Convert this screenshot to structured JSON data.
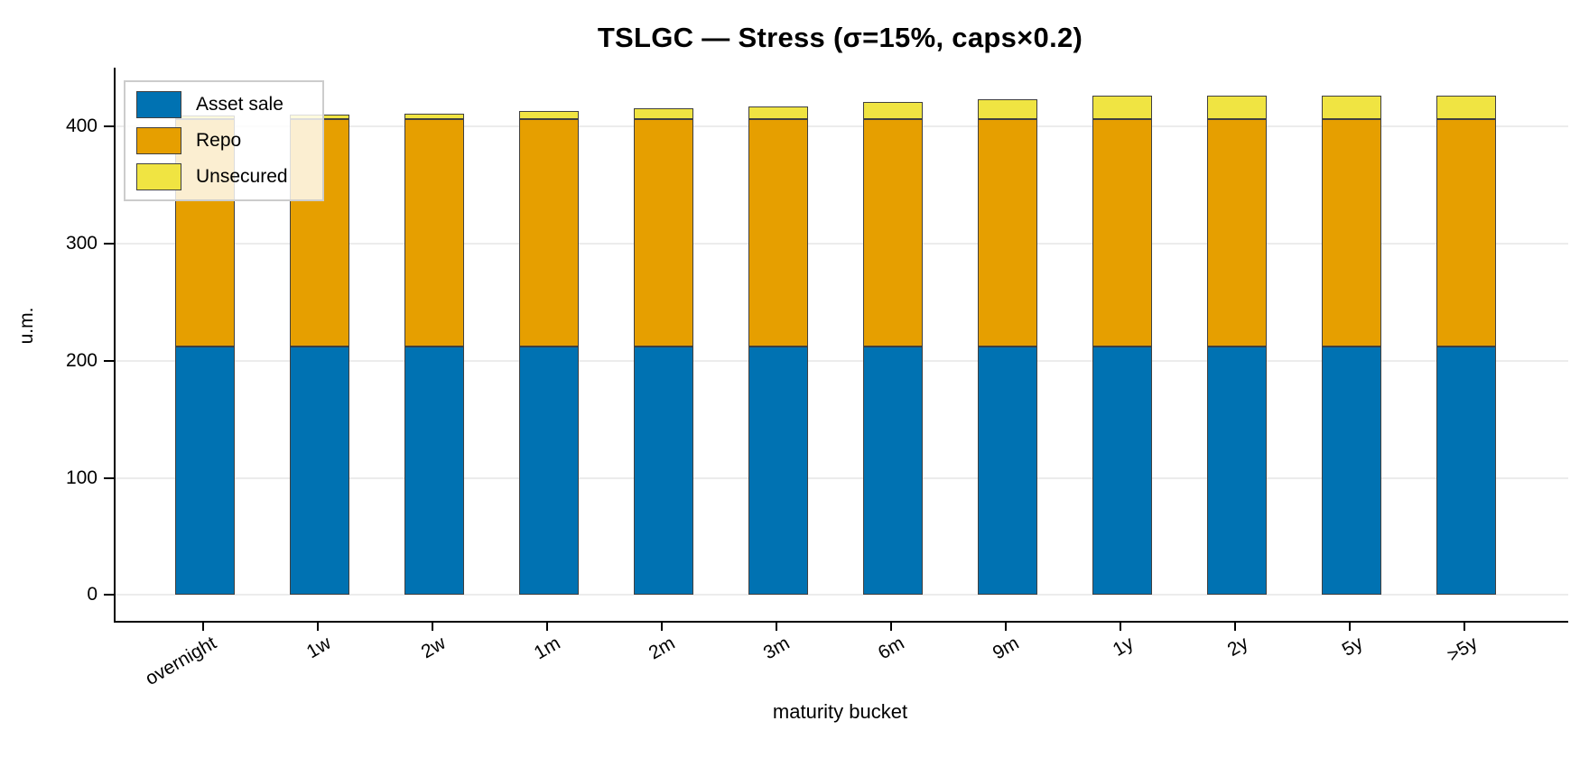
{
  "title": "TSLGC — Stress (σ=15%, caps×0.2)",
  "chart_data": {
    "type": "bar",
    "stacked": true,
    "title": "TSLGC — Stress (σ=15%, caps×0.2)",
    "xlabel": "maturity bucket",
    "ylabel": "u.m.",
    "categories": [
      "overnight",
      "1w",
      "2w",
      "1m",
      "2m",
      "3m",
      "6m",
      "9m",
      "1y",
      "2y",
      "5y",
      ">5y"
    ],
    "series": [
      {
        "name": "Asset sale",
        "color": "#0072B2",
        "values": [
          212,
          212,
          212,
          212,
          212,
          212,
          212,
          212,
          212,
          212,
          212,
          212
        ]
      },
      {
        "name": "Repo",
        "color": "#E69F00",
        "values": [
          194,
          194,
          194,
          194,
          194,
          194,
          194,
          194,
          194,
          194,
          194,
          194
        ]
      },
      {
        "name": "Unsecured",
        "color": "#F0E442",
        "values": [
          3,
          4,
          5,
          7,
          9,
          11,
          15,
          17,
          20,
          20,
          20,
          20
        ]
      }
    ],
    "stack_totals": [
      409,
      410,
      411,
      413,
      415,
      417,
      421,
      423,
      426,
      426,
      426,
      426
    ],
    "yticks": [
      0,
      100,
      200,
      300,
      400
    ],
    "ylim": [
      -22,
      450
    ],
    "grid": true,
    "legend_position": "upper left",
    "bar_edge_color": "#404040",
    "grid_color": "#ececec"
  }
}
